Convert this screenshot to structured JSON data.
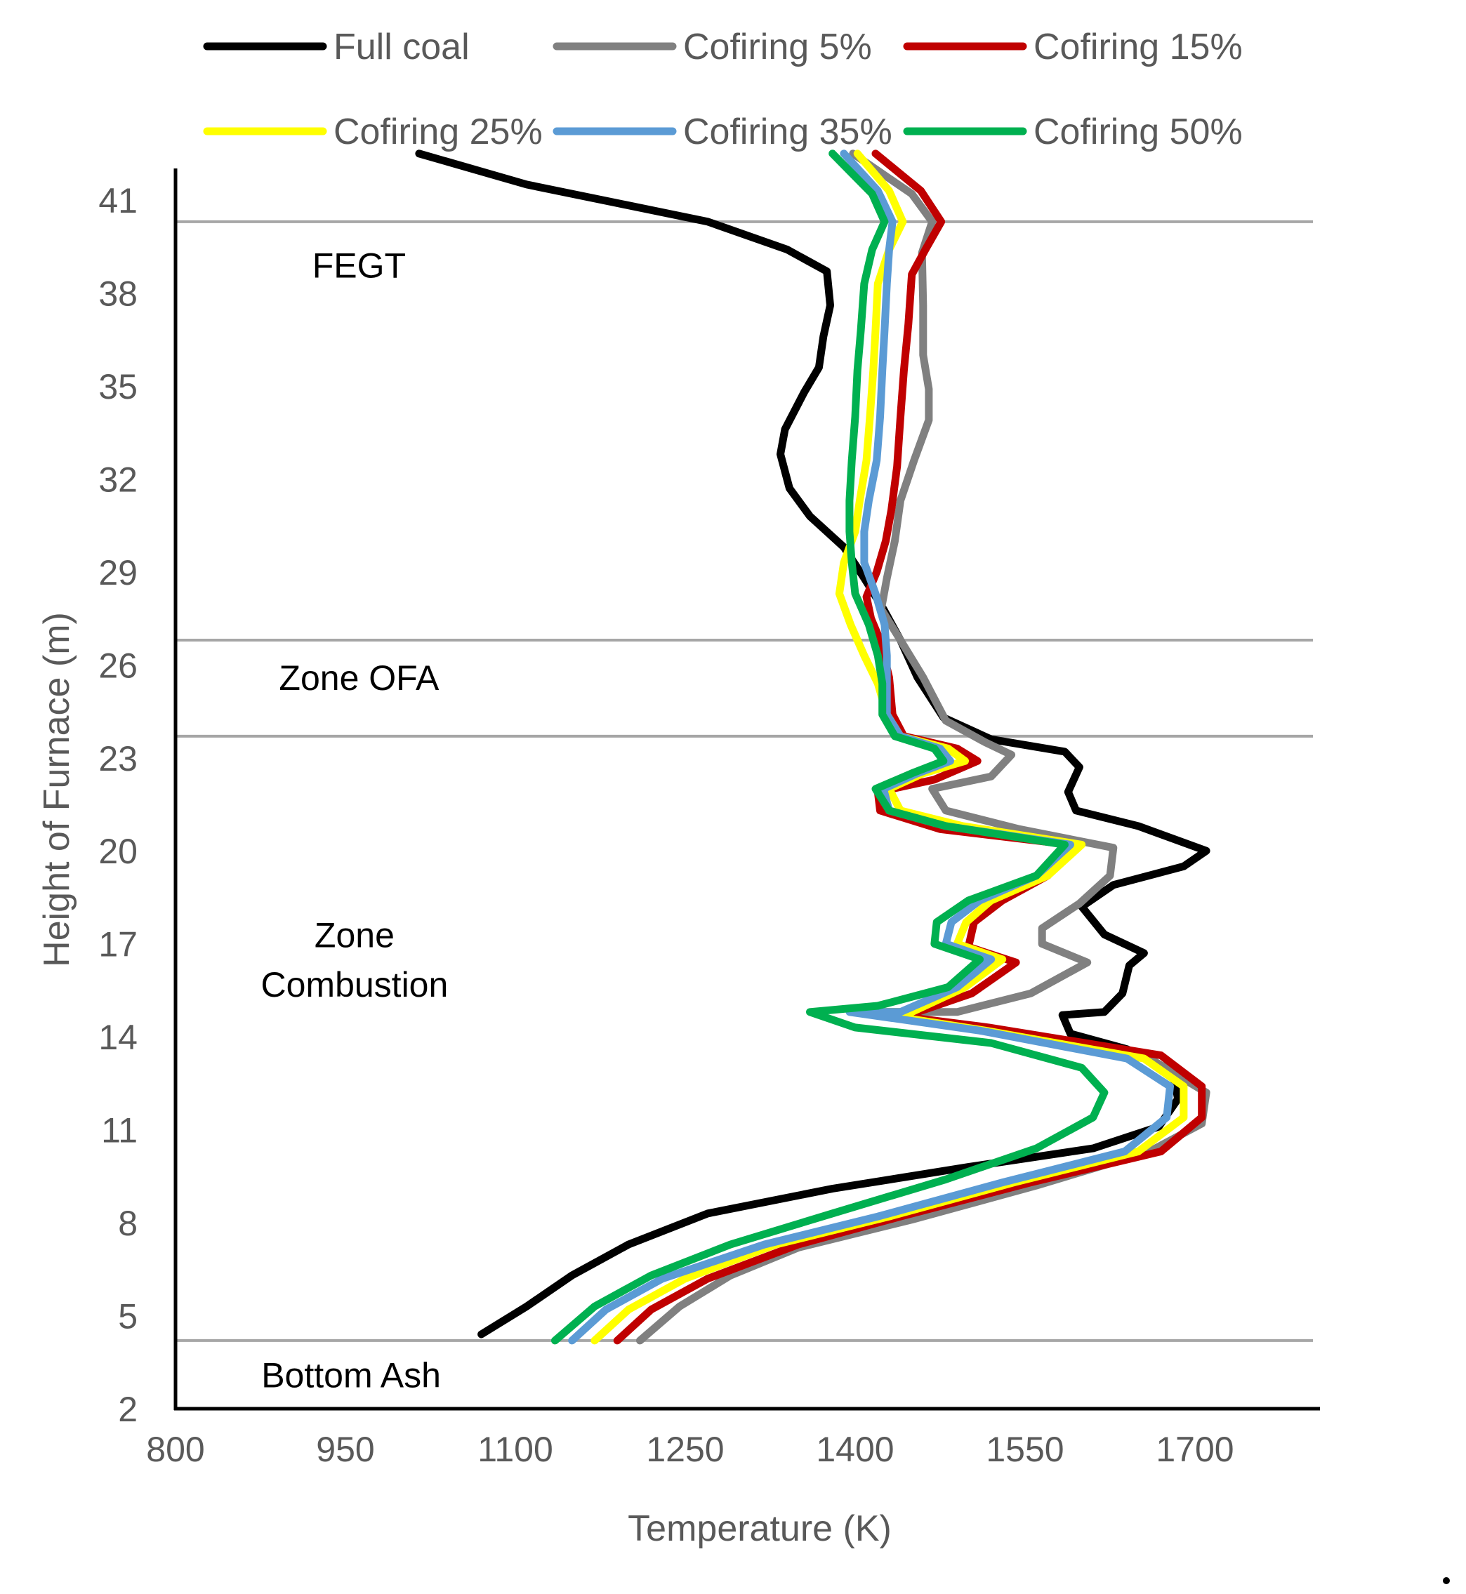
{
  "chart_data": {
    "type": "line",
    "orientation": "temperature-vs-height",
    "title": "",
    "xlabel": "Temperature (K)",
    "ylabel": "Height of Furnace (m)",
    "xlim": [
      800,
      1800
    ],
    "ylim": [
      2,
      42.5
    ],
    "x_ticks": [
      800,
      950,
      1100,
      1250,
      1400,
      1550,
      1700
    ],
    "y_ticks": [
      2,
      5,
      8,
      11,
      14,
      17,
      20,
      23,
      26,
      29,
      32,
      35,
      38,
      41
    ],
    "legend_position": "top",
    "zone_lines": [
      4.2,
      23.7,
      26.8,
      40.3
    ],
    "zones": [
      {
        "label": "FEGT",
        "x": 962,
        "y": 38.9
      },
      {
        "label": "Zone OFA",
        "x": 962,
        "y": 25.6
      },
      {
        "label": "Zone",
        "x": 958,
        "y": 17.3
      },
      {
        "label": "Combustion",
        "x": 958,
        "y": 15.7
      },
      {
        "label": "Bottom Ash",
        "x": 955,
        "y": 3.1
      }
    ],
    "series": [
      {
        "name": "Full coal",
        "color": "#000000",
        "points": [
          [
            1015,
            42.5
          ],
          [
            1110,
            41.5
          ],
          [
            1190,
            40.9
          ],
          [
            1270,
            40.3
          ],
          [
            1340,
            39.4
          ],
          [
            1375,
            38.7
          ],
          [
            1378,
            37.6
          ],
          [
            1372,
            36.6
          ],
          [
            1368,
            35.6
          ],
          [
            1355,
            34.8
          ],
          [
            1338,
            33.6
          ],
          [
            1334,
            32.8
          ],
          [
            1342,
            31.7
          ],
          [
            1360,
            30.8
          ],
          [
            1390,
            29.8
          ],
          [
            1408,
            28.8
          ],
          [
            1425,
            27.8
          ],
          [
            1440,
            26.8
          ],
          [
            1455,
            25.6
          ],
          [
            1478,
            24.3
          ],
          [
            1520,
            23.6
          ],
          [
            1585,
            23.2
          ],
          [
            1598,
            22.7
          ],
          [
            1588,
            21.9
          ],
          [
            1595,
            21.3
          ],
          [
            1650,
            20.8
          ],
          [
            1710,
            20.0
          ],
          [
            1690,
            19.5
          ],
          [
            1628,
            18.9
          ],
          [
            1600,
            18.2
          ],
          [
            1620,
            17.3
          ],
          [
            1655,
            16.7
          ],
          [
            1642,
            16.3
          ],
          [
            1636,
            15.4
          ],
          [
            1620,
            14.8
          ],
          [
            1583,
            14.7
          ],
          [
            1590,
            14.1
          ],
          [
            1640,
            13.6
          ],
          [
            1680,
            12.9
          ],
          [
            1685,
            12.0
          ],
          [
            1668,
            11.1
          ],
          [
            1610,
            10.4
          ],
          [
            1500,
            9.8
          ],
          [
            1380,
            9.1
          ],
          [
            1270,
            8.3
          ],
          [
            1200,
            7.3
          ],
          [
            1150,
            6.3
          ],
          [
            1110,
            5.3
          ],
          [
            1070,
            4.4
          ]
        ]
      },
      {
        "name": "Cofiring 5%",
        "color": "#808080",
        "points": [
          [
            1398,
            42.5
          ],
          [
            1450,
            41.2
          ],
          [
            1468,
            40.3
          ],
          [
            1459,
            39.3
          ],
          [
            1460,
            37.6
          ],
          [
            1460,
            36.0
          ],
          [
            1465,
            34.9
          ],
          [
            1465,
            33.9
          ],
          [
            1452,
            32.6
          ],
          [
            1440,
            31.3
          ],
          [
            1435,
            30.0
          ],
          [
            1428,
            28.8
          ],
          [
            1423,
            27.8
          ],
          [
            1440,
            26.8
          ],
          [
            1460,
            25.6
          ],
          [
            1480,
            24.2
          ],
          [
            1515,
            23.5
          ],
          [
            1538,
            23.1
          ],
          [
            1520,
            22.4
          ],
          [
            1468,
            22.0
          ],
          [
            1480,
            21.3
          ],
          [
            1545,
            20.7
          ],
          [
            1628,
            20.1
          ],
          [
            1625,
            19.2
          ],
          [
            1598,
            18.3
          ],
          [
            1565,
            17.5
          ],
          [
            1565,
            17.0
          ],
          [
            1605,
            16.4
          ],
          [
            1555,
            15.4
          ],
          [
            1490,
            14.8
          ],
          [
            1418,
            14.8
          ],
          [
            1505,
            14.3
          ],
          [
            1660,
            13.3
          ],
          [
            1710,
            12.2
          ],
          [
            1706,
            11.2
          ],
          [
            1660,
            10.3
          ],
          [
            1560,
            9.2
          ],
          [
            1450,
            8.1
          ],
          [
            1350,
            7.2
          ],
          [
            1290,
            6.3
          ],
          [
            1245,
            5.3
          ],
          [
            1210,
            4.2
          ]
        ]
      },
      {
        "name": "Cofiring 15%",
        "color": "#C00000",
        "points": [
          [
            1418,
            42.5
          ],
          [
            1458,
            41.3
          ],
          [
            1476,
            40.3
          ],
          [
            1462,
            39.4
          ],
          [
            1450,
            38.6
          ],
          [
            1447,
            37.0
          ],
          [
            1443,
            35.5
          ],
          [
            1440,
            34.0
          ],
          [
            1437,
            32.4
          ],
          [
            1432,
            31.0
          ],
          [
            1427,
            30.0
          ],
          [
            1419,
            29.0
          ],
          [
            1410,
            28.2
          ],
          [
            1414,
            27.5
          ],
          [
            1422,
            26.8
          ],
          [
            1430,
            25.6
          ],
          [
            1433,
            24.4
          ],
          [
            1443,
            23.7
          ],
          [
            1490,
            23.3
          ],
          [
            1508,
            22.9
          ],
          [
            1470,
            22.3
          ],
          [
            1420,
            21.9
          ],
          [
            1422,
            21.3
          ],
          [
            1475,
            20.7
          ],
          [
            1590,
            20.2
          ],
          [
            1570,
            19.2
          ],
          [
            1530,
            18.4
          ],
          [
            1505,
            17.7
          ],
          [
            1500,
            16.9
          ],
          [
            1542,
            16.4
          ],
          [
            1503,
            15.4
          ],
          [
            1455,
            14.8
          ],
          [
            1410,
            14.8
          ],
          [
            1518,
            14.3
          ],
          [
            1670,
            13.4
          ],
          [
            1706,
            12.4
          ],
          [
            1706,
            11.4
          ],
          [
            1670,
            10.3
          ],
          [
            1555,
            9.3
          ],
          [
            1440,
            8.2
          ],
          [
            1350,
            7.3
          ],
          [
            1270,
            6.2
          ],
          [
            1220,
            5.2
          ],
          [
            1190,
            4.2
          ]
        ]
      },
      {
        "name": "Cofiring 25%",
        "color": "#FFFF00",
        "points": [
          [
            1402,
            42.5
          ],
          [
            1430,
            41.3
          ],
          [
            1442,
            40.3
          ],
          [
            1430,
            39.4
          ],
          [
            1420,
            38.3
          ],
          [
            1418,
            36.8
          ],
          [
            1416,
            35.5
          ],
          [
            1413,
            34.0
          ],
          [
            1410,
            32.6
          ],
          [
            1404,
            31.3
          ],
          [
            1400,
            30.3
          ],
          [
            1390,
            29.3
          ],
          [
            1386,
            28.3
          ],
          [
            1396,
            27.3
          ],
          [
            1408,
            26.3
          ],
          [
            1420,
            25.4
          ],
          [
            1428,
            24.4
          ],
          [
            1440,
            23.7
          ],
          [
            1482,
            23.3
          ],
          [
            1497,
            22.9
          ],
          [
            1460,
            22.5
          ],
          [
            1430,
            22.0
          ],
          [
            1440,
            21.3
          ],
          [
            1495,
            20.8
          ],
          [
            1600,
            20.2
          ],
          [
            1570,
            19.2
          ],
          [
            1520,
            18.4
          ],
          [
            1498,
            17.7
          ],
          [
            1490,
            17.0
          ],
          [
            1530,
            16.5
          ],
          [
            1497,
            15.6
          ],
          [
            1450,
            14.8
          ],
          [
            1410,
            14.8
          ],
          [
            1515,
            14.2
          ],
          [
            1655,
            13.3
          ],
          [
            1690,
            12.4
          ],
          [
            1690,
            11.4
          ],
          [
            1650,
            10.3
          ],
          [
            1540,
            9.3
          ],
          [
            1430,
            8.2
          ],
          [
            1330,
            7.3
          ],
          [
            1250,
            6.2
          ],
          [
            1200,
            5.2
          ],
          [
            1170,
            4.2
          ]
        ]
      },
      {
        "name": "Cofiring 35%",
        "color": "#5B9BD5",
        "points": [
          [
            1390,
            42.5
          ],
          [
            1420,
            41.3
          ],
          [
            1433,
            40.3
          ],
          [
            1430,
            39.4
          ],
          [
            1428,
            38.3
          ],
          [
            1426,
            36.8
          ],
          [
            1424,
            35.5
          ],
          [
            1422,
            34.0
          ],
          [
            1419,
            32.6
          ],
          [
            1412,
            31.3
          ],
          [
            1408,
            30.3
          ],
          [
            1408,
            29.3
          ],
          [
            1418,
            28.3
          ],
          [
            1426,
            27.3
          ],
          [
            1428,
            26.3
          ],
          [
            1428,
            25.4
          ],
          [
            1428,
            24.4
          ],
          [
            1440,
            23.7
          ],
          [
            1475,
            23.3
          ],
          [
            1484,
            22.9
          ],
          [
            1455,
            22.5
          ],
          [
            1425,
            22.0
          ],
          [
            1430,
            21.3
          ],
          [
            1480,
            20.8
          ],
          [
            1590,
            20.2
          ],
          [
            1560,
            19.2
          ],
          [
            1510,
            18.4
          ],
          [
            1485,
            17.7
          ],
          [
            1480,
            17.0
          ],
          [
            1520,
            16.5
          ],
          [
            1490,
            15.6
          ],
          [
            1440,
            14.8
          ],
          [
            1395,
            14.8
          ],
          [
            1510,
            14.2
          ],
          [
            1640,
            13.3
          ],
          [
            1678,
            12.4
          ],
          [
            1675,
            11.4
          ],
          [
            1638,
            10.3
          ],
          [
            1530,
            9.3
          ],
          [
            1420,
            8.2
          ],
          [
            1320,
            7.3
          ],
          [
            1230,
            6.2
          ],
          [
            1180,
            5.2
          ],
          [
            1150,
            4.2
          ]
        ]
      },
      {
        "name": "Cofiring 50%",
        "color": "#00B050",
        "points": [
          [
            1380,
            42.5
          ],
          [
            1415,
            41.2
          ],
          [
            1426,
            40.3
          ],
          [
            1415,
            39.4
          ],
          [
            1408,
            38.3
          ],
          [
            1405,
            36.8
          ],
          [
            1402,
            35.5
          ],
          [
            1400,
            34.0
          ],
          [
            1397,
            32.6
          ],
          [
            1395,
            31.3
          ],
          [
            1395,
            30.3
          ],
          [
            1397,
            29.3
          ],
          [
            1400,
            28.3
          ],
          [
            1412,
            27.3
          ],
          [
            1420,
            26.3
          ],
          [
            1424,
            25.4
          ],
          [
            1424,
            24.4
          ],
          [
            1435,
            23.7
          ],
          [
            1470,
            23.3
          ],
          [
            1478,
            22.9
          ],
          [
            1450,
            22.5
          ],
          [
            1418,
            22.0
          ],
          [
            1430,
            21.3
          ],
          [
            1480,
            20.8
          ],
          [
            1585,
            20.2
          ],
          [
            1560,
            19.2
          ],
          [
            1500,
            18.4
          ],
          [
            1472,
            17.7
          ],
          [
            1470,
            17.0
          ],
          [
            1510,
            16.5
          ],
          [
            1482,
            15.6
          ],
          [
            1420,
            15.0
          ],
          [
            1360,
            14.8
          ],
          [
            1400,
            14.3
          ],
          [
            1520,
            13.8
          ],
          [
            1600,
            13.0
          ],
          [
            1620,
            12.2
          ],
          [
            1610,
            11.4
          ],
          [
            1560,
            10.4
          ],
          [
            1480,
            9.4
          ],
          [
            1380,
            8.3
          ],
          [
            1290,
            7.3
          ],
          [
            1220,
            6.3
          ],
          [
            1170,
            5.3
          ],
          [
            1135,
            4.2
          ]
        ]
      }
    ]
  }
}
